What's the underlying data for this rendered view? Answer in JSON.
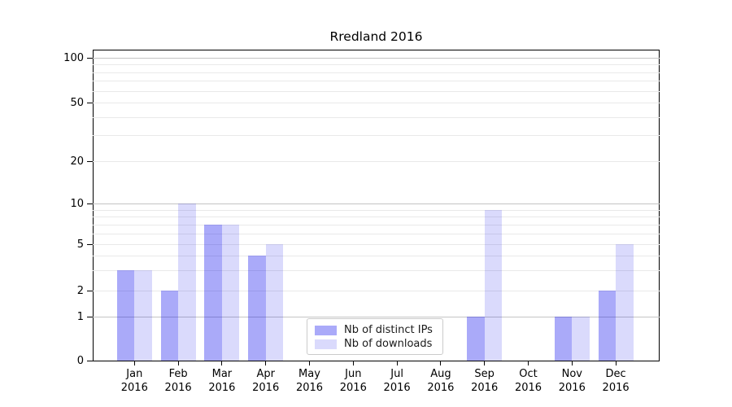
{
  "figure": {
    "background": "#ffffff"
  },
  "chart_data": {
    "type": "bar",
    "title": "Rredland 2016",
    "categories": [
      {
        "month": "Jan",
        "year": "2016"
      },
      {
        "month": "Feb",
        "year": "2016"
      },
      {
        "month": "Mar",
        "year": "2016"
      },
      {
        "month": "Apr",
        "year": "2016"
      },
      {
        "month": "May",
        "year": "2016"
      },
      {
        "month": "Jun",
        "year": "2016"
      },
      {
        "month": "Jul",
        "year": "2016"
      },
      {
        "month": "Aug",
        "year": "2016"
      },
      {
        "month": "Sep",
        "year": "2016"
      },
      {
        "month": "Oct",
        "year": "2016"
      },
      {
        "month": "Nov",
        "year": "2016"
      },
      {
        "month": "Dec",
        "year": "2016"
      }
    ],
    "series": [
      {
        "name": "Nb of distinct IPs",
        "color": "rgba(8,8,238,0.345)",
        "values": [
          3,
          2,
          7,
          4,
          0,
          0,
          0,
          0,
          1,
          0,
          1,
          2
        ]
      },
      {
        "name": "Nb of downloads",
        "color": "rgba(8,8,238,0.15)",
        "values": [
          3,
          10,
          7,
          5,
          0,
          0,
          0,
          0,
          9,
          0,
          1,
          5
        ]
      }
    ],
    "y_axis": {
      "scale": "symlog",
      "ticks": [
        {
          "value": 0,
          "label": "0"
        },
        {
          "value": 1,
          "label": "1"
        },
        {
          "value": 2,
          "label": "2"
        },
        {
          "value": 5,
          "label": "5"
        },
        {
          "value": 10,
          "label": "10"
        },
        {
          "value": 20,
          "label": "20"
        },
        {
          "value": 50,
          "label": "50"
        },
        {
          "value": 100,
          "label": "100"
        }
      ],
      "ylim": [
        0,
        113
      ]
    },
    "grid": "horizontal",
    "legend_position": "bottom-center"
  }
}
